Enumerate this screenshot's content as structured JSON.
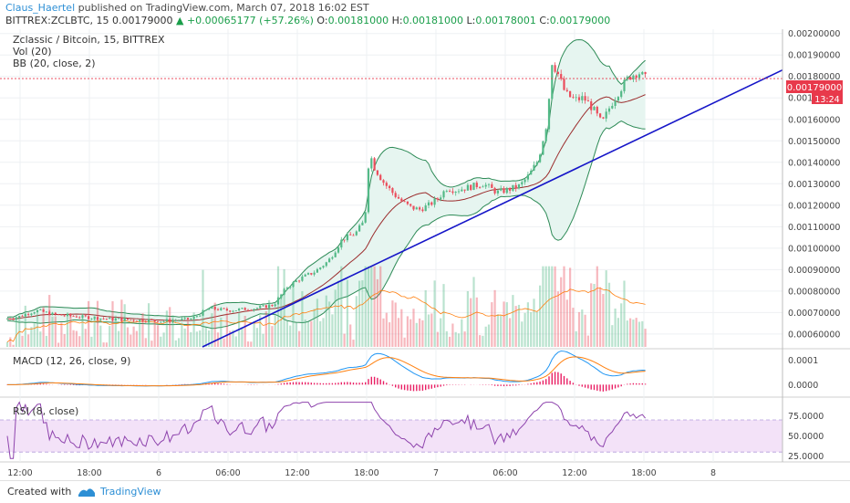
{
  "header": {
    "author": "Claus_Haertel",
    "published_text": "published on TradingView.com, March 07, 2018 16:02 EST",
    "symbol": "BITTREX:ZCLBTC, 15",
    "last": "0.00179000",
    "change": "+0.00065177 (+57.26%)",
    "o_label": "O:",
    "o": "0.00181000",
    "h_label": "H:",
    "h": "0.00181000",
    "l_label": "L:",
    "l": "0.00178001",
    "c_label": "C:",
    "c": "0.00179000"
  },
  "legend": {
    "main": "Zclassic / Bitcoin, 15, BITTREX",
    "vol": "Vol (20)",
    "bb": "BB (20, close, 2)",
    "macd": "MACD (12, 26, close, 9)",
    "rsi": "RSI (8, close)"
  },
  "price_label": "0.00179000",
  "countdown": "13:24",
  "footer": {
    "created": "Created with",
    "brand": "TradingView"
  },
  "colors": {
    "up": "#53b987",
    "down": "#eb4d5c",
    "bb": "#2e8b57",
    "bb_fill": "#e6f5f0",
    "basis": "#9b2c2c",
    "trendline": "#1515c8",
    "macd": "#2196f3",
    "signal": "#ff7f0e",
    "hist": "#e91e63",
    "rsi": "#8e44ad",
    "rsi_band": "#f3e2f8",
    "price_line": "#e8394b"
  },
  "chart_data": [
    {
      "type": "candlestick",
      "title": "Zclassic / Bitcoin, 15, BITTREX",
      "y_ticks": [
        "0.00060000",
        "0.00070000",
        "0.00080000",
        "0.00090000",
        "0.00100000",
        "0.00110000",
        "0.00120000",
        "0.00130000",
        "0.00140000",
        "0.00150000",
        "0.00160000",
        "0.00170000",
        "0.00180000",
        "0.00190000",
        "0.00200000"
      ],
      "ylim": [
        0.00054,
        0.00202
      ],
      "x_ticks": [
        "12:00",
        "18:00",
        "6",
        "06:00",
        "12:00",
        "18:00",
        "7",
        "06:00",
        "12:00",
        "18:00",
        "8"
      ],
      "close_path": [
        [
          0,
          0.000665
        ],
        [
          20,
          0.00068
        ],
        [
          40,
          0.00071
        ],
        [
          60,
          0.00069
        ],
        [
          90,
          0.00068
        ],
        [
          120,
          0.00067
        ],
        [
          150,
          0.000665
        ],
        [
          180,
          0.00066
        ],
        [
          210,
          0.00067
        ],
        [
          230,
          0.00072
        ],
        [
          250,
          0.00071
        ],
        [
          280,
          0.00072
        ],
        [
          300,
          0.000735
        ],
        [
          315,
          0.00082
        ],
        [
          330,
          0.00086
        ],
        [
          345,
          0.00089
        ],
        [
          360,
          0.00094
        ],
        [
          375,
          0.00104
        ],
        [
          390,
          0.00107
        ],
        [
          400,
          0.00113
        ],
        [
          405,
          0.00145
        ],
        [
          410,
          0.00138
        ],
        [
          420,
          0.00131
        ],
        [
          430,
          0.00126
        ],
        [
          440,
          0.00122
        ],
        [
          450,
          0.00119
        ],
        [
          460,
          0.00118
        ],
        [
          470,
          0.0012
        ],
        [
          480,
          0.00123
        ],
        [
          490,
          0.00128
        ],
        [
          500,
          0.00127
        ],
        [
          510,
          0.00128
        ],
        [
          520,
          0.00129
        ],
        [
          530,
          0.0013
        ],
        [
          545,
          0.00126
        ],
        [
          555,
          0.00127
        ],
        [
          570,
          0.00129
        ],
        [
          580,
          0.00134
        ],
        [
          590,
          0.00141
        ],
        [
          600,
          0.00159
        ],
        [
          605,
          0.00187
        ],
        [
          612,
          0.00181
        ],
        [
          620,
          0.00172
        ],
        [
          630,
          0.00169
        ],
        [
          640,
          0.0017
        ],
        [
          650,
          0.00165
        ],
        [
          660,
          0.00158
        ],
        [
          670,
          0.00167
        ],
        [
          680,
          0.00174
        ],
        [
          690,
          0.0018
        ],
        [
          700,
          0.00182
        ],
        [
          708,
          0.00179
        ]
      ],
      "trendline": {
        "start": [
          222,
          0.00054
        ],
        "end": [
          858,
          0.00183
        ]
      },
      "last_price": 0.00179
    },
    {
      "type": "bar",
      "name": "Vol (20)",
      "note": "volume bars share price panel bottom"
    },
    {
      "type": "line",
      "name": "MACD (12, 26, close, 9)",
      "y_ticks": [
        "0.0000",
        "0.0001"
      ],
      "ylim": [
        -4e-05,
        0.00014
      ]
    },
    {
      "type": "line",
      "name": "RSI (8, close)",
      "y_ticks": [
        "25.0000",
        "50.0000",
        "75.0000"
      ],
      "ylim": [
        20,
        95
      ],
      "band": [
        30,
        70
      ]
    }
  ]
}
